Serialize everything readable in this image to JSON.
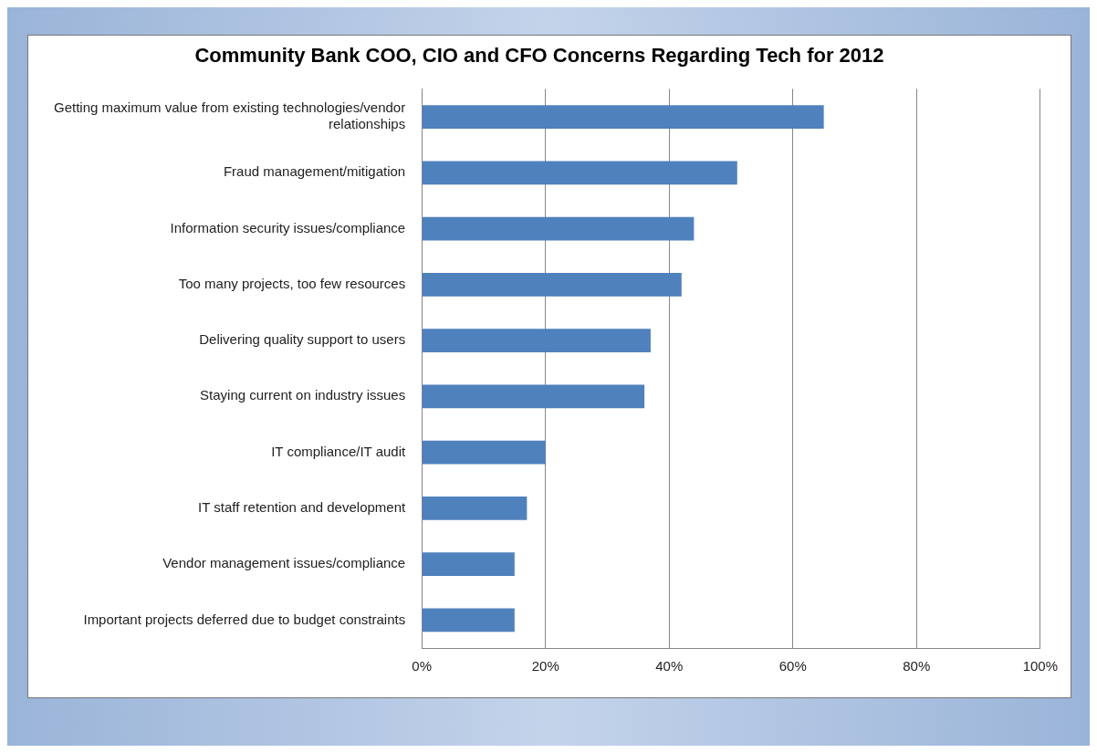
{
  "chart_data": {
    "type": "bar",
    "orientation": "horizontal",
    "title": "Community Bank COO, CIO and CFO Concerns Regarding Tech for 2012",
    "categories": [
      "Getting maximum value from existing technologies/vendor relationships",
      "Fraud management/mitigation",
      "Information security issues/compliance",
      "Too many projects, too few resources",
      "Delivering quality support to users",
      "Staying current on industry issues",
      "IT compliance/IT audit",
      "IT staff retention and development",
      "Vendor management issues/compliance",
      "Important projects deferred due to budget constraints"
    ],
    "values": [
      65,
      51,
      44,
      42,
      37,
      36,
      20,
      17,
      15,
      15
    ],
    "color": "#4f81bd",
    "xlim": [
      0,
      100
    ],
    "xticks": [
      {
        "value": 0,
        "label": "0%"
      },
      {
        "value": 20,
        "label": "20%"
      },
      {
        "value": 40,
        "label": "40%"
      },
      {
        "value": 60,
        "label": "60%"
      },
      {
        "value": 80,
        "label": "80%"
      },
      {
        "value": 100,
        "label": "100%"
      }
    ],
    "grid": "x",
    "legend": false
  }
}
